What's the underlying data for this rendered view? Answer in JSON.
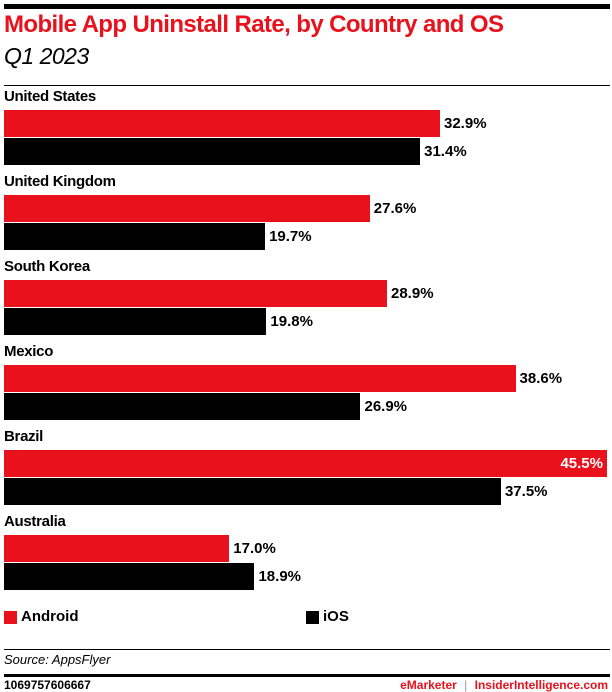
{
  "chart_data": {
    "type": "bar",
    "orientation": "horizontal",
    "title": "Mobile App Uninstall Rate, by Country and OS",
    "subtitle": "Q1 2023",
    "categories": [
      "United States",
      "United Kingdom",
      "South Korea",
      "Mexico",
      "Brazil",
      "Australia"
    ],
    "series": [
      {
        "name": "Android",
        "color": "#e8111c",
        "values": [
          32.9,
          27.6,
          28.9,
          38.6,
          45.5,
          17.0
        ],
        "labels": [
          "32.9%",
          "27.6%",
          "28.9%",
          "38.6%",
          "45.5%",
          "17.0%"
        ]
      },
      {
        "name": "iOS",
        "color": "#000000",
        "values": [
          31.4,
          19.7,
          19.8,
          26.9,
          37.5,
          18.9
        ],
        "labels": [
          "31.4%",
          "19.7%",
          "19.8%",
          "26.9%",
          "37.5%",
          "18.9%"
        ]
      }
    ],
    "xlim": [
      0,
      45.5
    ],
    "grid": false,
    "legend": "bottom",
    "source": "Source: AppsFlyer"
  },
  "footer": {
    "id": "1069757606667",
    "brand1": "eMarketer",
    "separator": "|",
    "brand2": "InsiderIntelligence.com"
  }
}
